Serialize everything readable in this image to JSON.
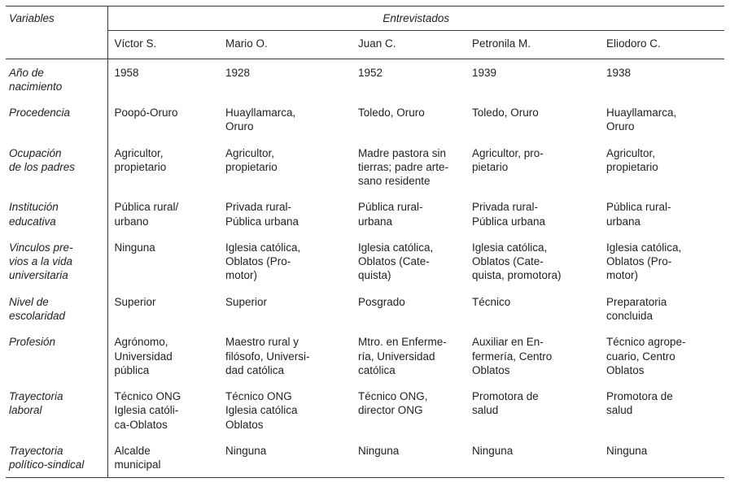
{
  "table": {
    "header": {
      "variables_label": "Variables",
      "group_label": "Entrevistados",
      "columns": [
        "Víctor S.",
        "Mario O.",
        "Juan C.",
        "Petronila M.",
        "Eliodoro C."
      ]
    },
    "rows": [
      {
        "variable": "Año de\nnacimiento",
        "values": [
          "1958",
          "1928",
          "1952",
          "1939",
          "1938"
        ]
      },
      {
        "variable": "Procedencia",
        "values": [
          "Poopó-Oruro",
          "Huayllamarca,\nOruro",
          "Toledo, Oruro",
          "Toledo, Oruro",
          "Huayllamarca,\nOruro"
        ]
      },
      {
        "variable": "Ocupación\nde los padres",
        "values": [
          "Agricultor,\npropietario",
          "Agricultor,\npropietario",
          "Madre pastora sin\ntierras; padre arte-\nsano residente",
          "Agricultor, pro-\npietario",
          "Agricultor,\npropietario"
        ]
      },
      {
        "variable": "Institución\neducativa",
        "values": [
          "Pública rural/\nurbano",
          "Privada rural-\nPública urbana",
          "Pública rural-\nurbana",
          "Privada rural-\nPública urbana",
          "Pública rural-\nurbana"
        ]
      },
      {
        "variable": "Vinculos pre-\nvios a la vida\nuniversitaria",
        "values": [
          "Ninguna",
          "Iglesia católica,\nOblatos (Pro-\nmotor)",
          "Iglesia católica,\nOblatos (Cate-\nquista)",
          "Iglesia católica,\nOblatos (Cate-\nquista, promotora)",
          "Iglesia católica,\nOblatos (Pro-\nmotor)"
        ]
      },
      {
        "variable": "Nivel de\nescolaridad",
        "values": [
          "Superior",
          "Superior",
          "Posgrado",
          "Técnico",
          "Preparatoria\nconcluida"
        ]
      },
      {
        "variable": "Profesión",
        "values": [
          "Agrónomo,\nUniversidad\npública",
          "Maestro rural y\nfilósofo, Universi-\ndad católica",
          "Mtro. en Enferme-\nría, Universidad\ncatólica",
          "Auxiliar en En-\nfermería, Centro\nOblatos",
          "Técnico agrope-\ncuario, Centro\nOblatos"
        ]
      },
      {
        "variable": "Trayectoria\nlaboral",
        "values": [
          "Técnico ONG\nIglesia católi-\nca-Oblatos",
          "Técnico ONG\nIglesia católica\nOblatos",
          "Técnico ONG,\ndirector ONG",
          "Promotora de\nsalud",
          "Promotora de\nsalud"
        ]
      },
      {
        "variable": "Trayectoria\npolítico-sindical",
        "values": [
          "Alcalde\nmunicipal",
          "Ninguna",
          "Ninguna",
          "Ninguna",
          "Ninguna"
        ]
      }
    ]
  }
}
